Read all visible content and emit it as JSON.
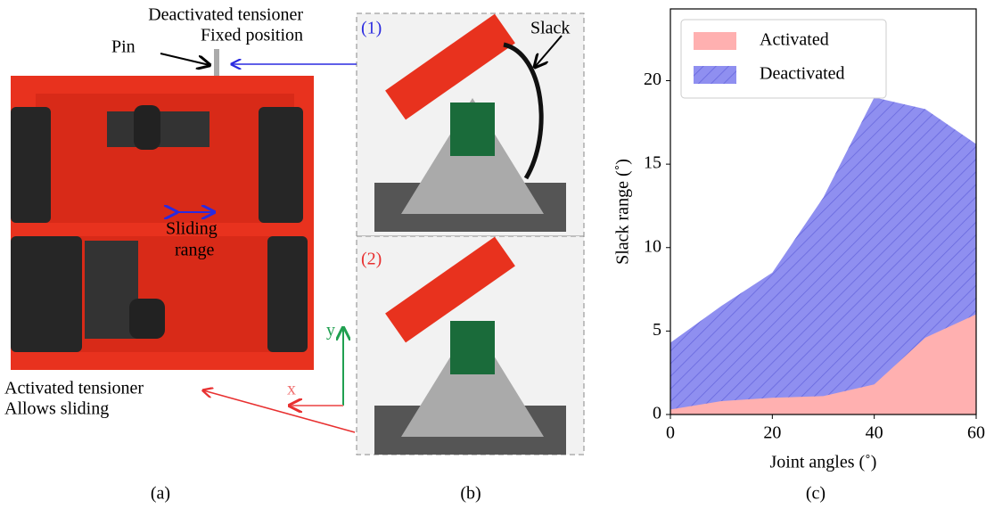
{
  "panel_a": {
    "label": "(a)",
    "top_line1": "Deactivated tensioner",
    "top_line2": "Fixed position",
    "pin": "Pin",
    "sliding1": "Sliding",
    "sliding2": "range",
    "axis_y": "y",
    "axis_x": "x",
    "bottom_line1": "Activated tensioner",
    "bottom_line2": "Allows sliding"
  },
  "panel_b": {
    "label": "(b)",
    "top_tag": "(1)",
    "slack": "Slack",
    "bottom_tag": "(2)"
  },
  "panel_c": {
    "label": "(c)"
  },
  "chart_data": {
    "type": "area",
    "x_label": "Joint angles (˚)",
    "y_label": "Slack range (˚)",
    "x": [
      0,
      10,
      20,
      30,
      40,
      50,
      60
    ],
    "series": [
      {
        "name": "Deactivated",
        "color": "#8f8ff0",
        "hatch": true,
        "values": [
          4.3,
          6.5,
          8.5,
          13.0,
          19.0,
          18.3,
          16.2
        ]
      },
      {
        "name": "Activated",
        "color": "#ffb0b0",
        "hatch": false,
        "values": [
          0.3,
          0.8,
          1.0,
          1.1,
          1.8,
          4.6,
          6.0
        ]
      }
    ],
    "legend_order": [
      1,
      0
    ],
    "xlim": [
      0,
      60
    ],
    "ylim": [
      0,
      24.3
    ],
    "xticks": [
      0,
      20,
      40,
      60
    ],
    "yticks": [
      0,
      5,
      10,
      15,
      20
    ],
    "legend": "upper left",
    "grid": false
  }
}
